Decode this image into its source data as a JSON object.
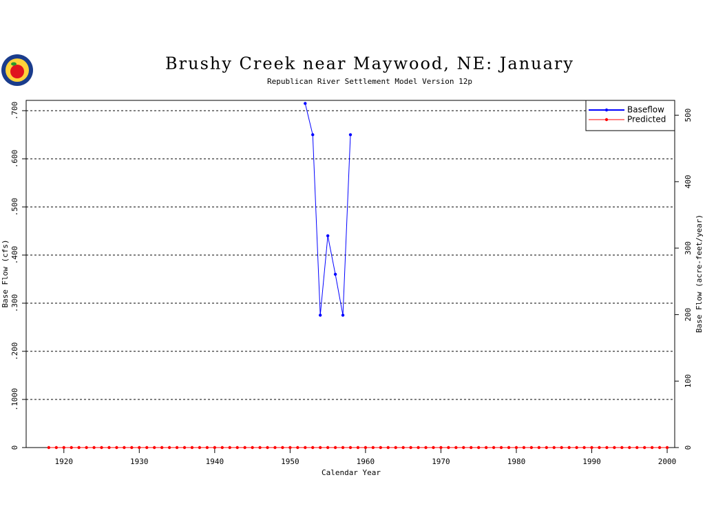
{
  "chart_data": {
    "type": "line",
    "title": "Brushy Creek near Maywood, NE: January",
    "subtitle": "Republican River Settlement Model Version 12p",
    "x_label": "Calendar Year",
    "y_label": "Base Flow (cfs)",
    "y2_label": "Base Flow (acre-feet/year)",
    "xlim": [
      1915,
      2001
    ],
    "xticks": [
      1920,
      1930,
      1940,
      1950,
      1960,
      1970,
      1980,
      1990,
      2000
    ],
    "ylim": [
      0,
      0.7214
    ],
    "yticks": [
      0,
      {
        "value": 0.1,
        "label": ".1000"
      },
      {
        "value": 0.2,
        "label": ".200"
      },
      {
        "value": 0.3,
        "label": ".300"
      },
      {
        "value": 0.4,
        "label": ".400"
      },
      {
        "value": 0.5,
        "label": ".500"
      },
      {
        "value": 0.6,
        "label": ".600"
      },
      {
        "value": 0.7,
        "label": ".700"
      }
    ],
    "y2lim": [
      0,
      522.3
    ],
    "y2ticks": [
      0,
      100,
      200,
      300,
      400,
      500
    ],
    "grid": true,
    "legend": "top-right",
    "series": [
      {
        "name": "Baseflow",
        "color": "#0000ff",
        "x": [
          1952,
          1953,
          1954,
          1955,
          1956,
          1957,
          1958
        ],
        "values": [
          0.715,
          0.65,
          0.275,
          0.44,
          0.36,
          0.275,
          0.65
        ]
      },
      {
        "name": "Predicted",
        "color": "#ff0000",
        "x": [
          1918,
          1919,
          1920,
          1921,
          1922,
          1923,
          1924,
          1925,
          1926,
          1927,
          1928,
          1929,
          1930,
          1931,
          1932,
          1933,
          1934,
          1935,
          1936,
          1937,
          1938,
          1939,
          1940,
          1941,
          1942,
          1943,
          1944,
          1945,
          1946,
          1947,
          1948,
          1949,
          1950,
          1951,
          1952,
          1953,
          1954,
          1955,
          1956,
          1957,
          1958,
          1959,
          1960,
          1961,
          1962,
          1963,
          1964,
          1965,
          1966,
          1967,
          1968,
          1969,
          1970,
          1971,
          1972,
          1973,
          1974,
          1975,
          1976,
          1977,
          1978,
          1979,
          1980,
          1981,
          1982,
          1983,
          1984,
          1985,
          1986,
          1987,
          1988,
          1989,
          1990,
          1991,
          1992,
          1993,
          1994,
          1995,
          1996,
          1997,
          1998,
          1999,
          2000
        ],
        "values": [
          0,
          0,
          0,
          0,
          0,
          0,
          0,
          0,
          0,
          0,
          0,
          0,
          0,
          0,
          0,
          0,
          0,
          0,
          0,
          0,
          0,
          0,
          0,
          0,
          0,
          0,
          0,
          0,
          0,
          0,
          0,
          0,
          0,
          0,
          0,
          0,
          0,
          0,
          0,
          0,
          0,
          0,
          0,
          0,
          0,
          0,
          0,
          0,
          0,
          0,
          0,
          0,
          0,
          0,
          0,
          0,
          0,
          0,
          0,
          0,
          0,
          0,
          0,
          0,
          0,
          0,
          0,
          0,
          0,
          0,
          0,
          0,
          0,
          0,
          0,
          0,
          0,
          0,
          0,
          0,
          0,
          0,
          0
        ]
      }
    ]
  }
}
